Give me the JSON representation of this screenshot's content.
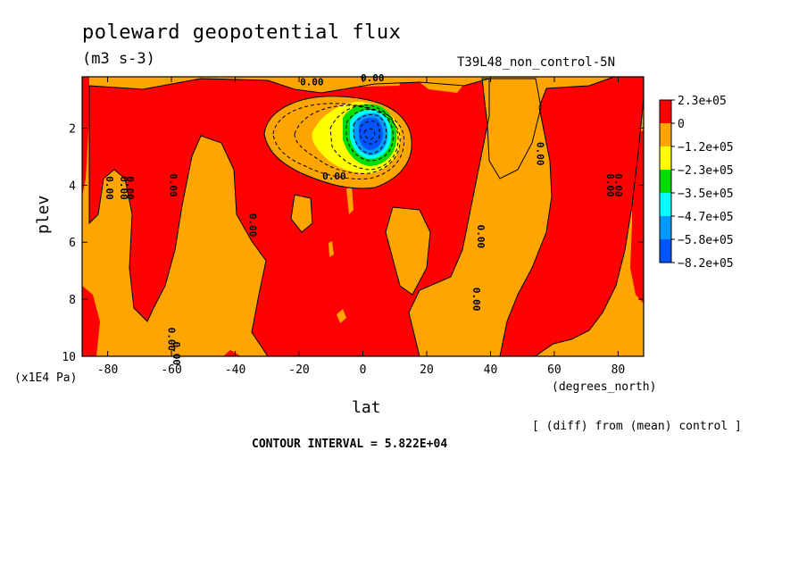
{
  "chart_data": {
    "type": "heatmap",
    "title": "poleward geopotential flux",
    "units": "(m3 s-3)",
    "run": "T39L48_non_control-5N",
    "xlabel": "lat",
    "ylabel": "plev",
    "xunits": "(degrees_north)",
    "yunits": "(x1E4 Pa)",
    "xlim": [
      -88,
      88
    ],
    "ylim": [
      10,
      0.2
    ],
    "x_ticks": [
      -80,
      -60,
      -40,
      -20,
      0,
      20,
      40,
      60,
      80
    ],
    "y_ticks": [
      2,
      4,
      6,
      8,
      10
    ],
    "colorbar": {
      "labels": [
        "2.3e+05",
        "0",
        "−1.2e+05",
        "−2.3e+05",
        "−3.5e+05",
        "−4.7e+05",
        "−5.8e+05",
        "−8.2e+05"
      ],
      "colors": [
        "#ff0000",
        "#ffa500",
        "#ffff00",
        "#00dd00",
        "#00ffff",
        "#0099ff",
        "#0055ff"
      ]
    },
    "contour_labels": [
      {
        "text": "0.00",
        "lat": -80.5,
        "plev": 4.1,
        "rot": -90
      },
      {
        "text": "0.00",
        "lat": -76,
        "plev": 4.1,
        "rot": -90
      },
      {
        "text": "0.00",
        "lat": -74,
        "plev": 4.1,
        "rot": -90
      },
      {
        "text": "0.00",
        "lat": -60.5,
        "plev": 4.0,
        "rot": -90
      },
      {
        "text": "0.00",
        "lat": -61,
        "plev": 9.4,
        "rot": -90
      },
      {
        "text": "0.00",
        "lat": -59.5,
        "plev": 9.9,
        "rot": -90
      },
      {
        "text": "0.00",
        "lat": -35.5,
        "plev": 5.4,
        "rot": -90
      },
      {
        "text": "0.00",
        "lat": -9,
        "plev": 3.8,
        "rot": 0
      },
      {
        "text": "0.00",
        "lat": -16,
        "plev": 0.5,
        "rot": 0
      },
      {
        "text": "0.00",
        "lat": 3,
        "plev": 0.35,
        "rot": 0
      },
      {
        "text": "0.00",
        "lat": 36,
        "plev": 5.8,
        "rot": -90
      },
      {
        "text": "0.00",
        "lat": 34.5,
        "plev": 8.0,
        "rot": -90
      },
      {
        "text": "0.00",
        "lat": 54.5,
        "plev": 2.9,
        "rot": -90
      },
      {
        "text": "0.00",
        "lat": 76.5,
        "plev": 4.0,
        "rot": -90
      },
      {
        "text": "0.00",
        "lat": 79,
        "plev": 4.0,
        "rot": -90
      }
    ]
  },
  "footer": {
    "diff_note": "[ (diff) from (mean) control ]",
    "contour_interval": "CONTOUR INTERVAL = 5.822E+04"
  }
}
